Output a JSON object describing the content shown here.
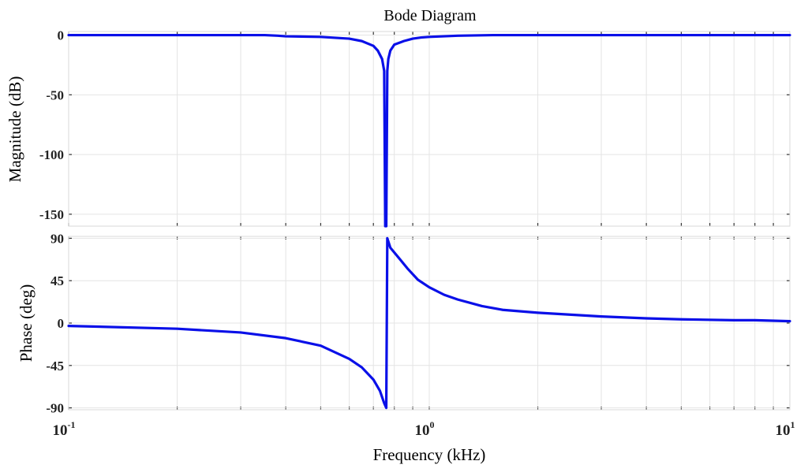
{
  "chart_data": {
    "type": "line",
    "title": "Bode Diagram",
    "xlabel": "Frequency  (kHz)",
    "xscale": "log",
    "xlim": [
      0.1,
      10
    ],
    "x_ticks": [
      {
        "base": "10",
        "exp": "-1",
        "value": 0.1
      },
      {
        "base": "10",
        "exp": "0",
        "value": 1
      },
      {
        "base": "10",
        "exp": "1",
        "value": 10
      }
    ],
    "grid": true,
    "line_color": "#0a10e8",
    "panels": [
      {
        "name": "magnitude",
        "ylabel": "Magnitude (dB)",
        "ylim": [
          -160,
          3
        ],
        "yticks": [
          0,
          -50,
          -100,
          -150
        ],
        "ytick_labels": [
          "0",
          "-50",
          "-100",
          "-150"
        ],
        "series": [
          {
            "x": [
              0.1,
              0.2,
              0.3,
              0.35,
              0.38,
              0.4,
              0.5,
              0.6,
              0.65,
              0.7,
              0.72,
              0.74,
              0.75,
              0.755,
              0.76,
              0.765,
              0.77,
              0.78,
              0.8,
              0.85,
              0.9,
              0.95,
              1.0,
              1.2,
              1.5,
              2,
              3,
              5,
              7,
              10
            ],
            "y": [
              0,
              0,
              0,
              0,
              -0.5,
              -1,
              -1.5,
              -3,
              -5,
              -9,
              -13,
              -20,
              -30,
              -160,
              -160,
              -30,
              -20,
              -13,
              -8,
              -5,
              -3,
              -2,
              -1.5,
              -0.5,
              0,
              0,
              0,
              0,
              0,
              0
            ]
          }
        ]
      },
      {
        "name": "phase",
        "ylabel": "Phase (deg)",
        "ylim": [
          -92,
          92
        ],
        "yticks": [
          90,
          45,
          0,
          -45,
          -90
        ],
        "ytick_labels": [
          "90",
          "45",
          "0",
          "-45",
          "-90"
        ],
        "series": [
          {
            "x": [
              0.1,
              0.2,
              0.3,
              0.4,
              0.5,
              0.6,
              0.65,
              0.7,
              0.73,
              0.75,
              0.76,
              0.765,
              0.78,
              0.82,
              0.87,
              0.93,
              1.0,
              1.1,
              1.2,
              1.4,
              1.6,
              2,
              3,
              4,
              5,
              7,
              8,
              10
            ],
            "y": [
              -3,
              -6,
              -10,
              -16,
              -24,
              -38,
              -47,
              -60,
              -72,
              -85,
              -90,
              90,
              80,
              70,
              58,
              46,
              38,
              30,
              25,
              18,
              14,
              11,
              7,
              5,
              4,
              3,
              3,
              2
            ]
          }
        ]
      }
    ]
  }
}
